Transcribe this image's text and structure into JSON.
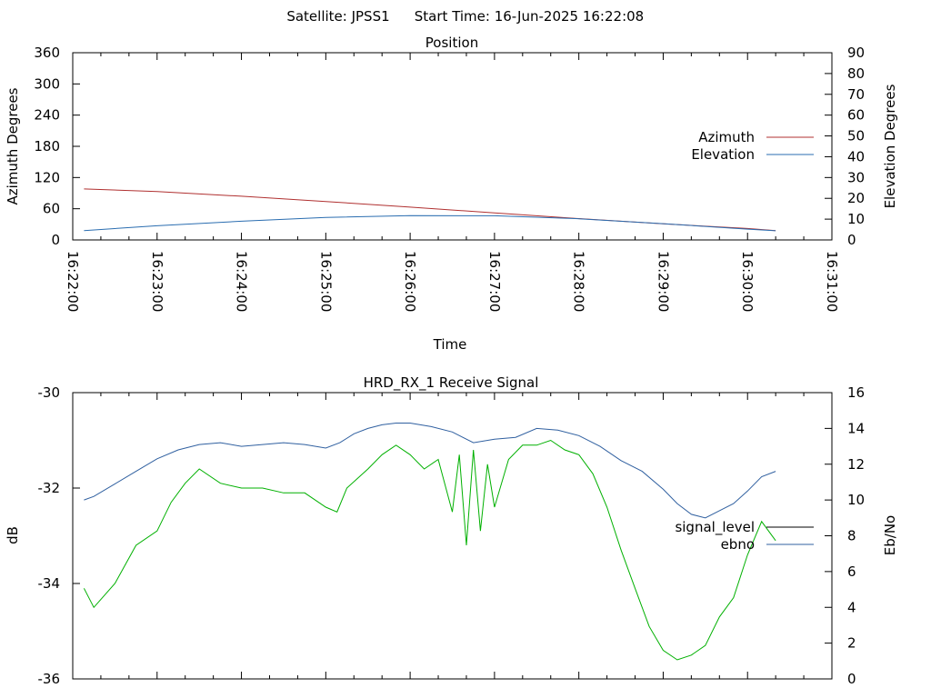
{
  "header": {
    "satellite_label": "Satellite: JPSS1",
    "start_time_label": "Start Time: 16-Jun-2025 16:22:08"
  },
  "colors": {
    "azimuth": "#b03030",
    "elevation": "#2a6db0",
    "signal_level": "#00b000",
    "ebno": "#3060a0",
    "legend_signal_level": "#000000",
    "axis": "#000000"
  },
  "chart_data": [
    {
      "type": "line",
      "title": "Position",
      "xlabel": "Time",
      "ylabel": "Azimuth Degrees",
      "y2label": "Elevation Degrees",
      "xlim": [
        "16:22:00",
        "16:31:00"
      ],
      "ylim": [
        0,
        360
      ],
      "y2lim": [
        0,
        90
      ],
      "x_ticks": [
        "16:22:00",
        "16:23:00",
        "16:24:00",
        "16:25:00",
        "16:26:00",
        "16:27:00",
        "16:28:00",
        "16:29:00",
        "16:30:00",
        "16:31:00"
      ],
      "y_ticks": [
        0,
        60,
        120,
        180,
        240,
        300,
        360
      ],
      "y2_ticks": [
        0,
        10,
        20,
        30,
        40,
        50,
        60,
        70,
        80,
        90
      ],
      "legend_position": "right",
      "series": [
        {
          "name": "Azimuth",
          "axis": "left",
          "x": [
            "16:22:08",
            "16:23:00",
            "16:24:00",
            "16:25:00",
            "16:26:00",
            "16:27:00",
            "16:28:00",
            "16:29:00",
            "16:30:00",
            "16:30:20"
          ],
          "values": [
            98,
            93,
            84,
            74,
            63,
            52,
            41,
            31,
            22,
            18
          ]
        },
        {
          "name": "Elevation",
          "axis": "right",
          "x": [
            "16:22:08",
            "16:23:00",
            "16:24:00",
            "16:25:00",
            "16:26:00",
            "16:27:00",
            "16:28:00",
            "16:29:00",
            "16:30:00",
            "16:30:20"
          ],
          "values": [
            4.5,
            6.8,
            9.0,
            10.8,
            11.7,
            11.6,
            10.2,
            7.8,
            5.2,
            4.4
          ]
        }
      ]
    },
    {
      "type": "line",
      "title": "HRD_RX_1 Receive Signal",
      "xlabel": "",
      "ylabel": "dB",
      "y2label": "Eb/No",
      "xlim": [
        "16:22:00",
        "16:31:00"
      ],
      "ylim": [
        -36,
        -30
      ],
      "y2lim": [
        0,
        16
      ],
      "y_ticks": [
        -36,
        -34,
        -32,
        -30
      ],
      "y2_ticks": [
        0,
        2,
        4,
        6,
        8,
        10,
        12,
        14,
        16
      ],
      "legend_position": "right",
      "series": [
        {
          "name": "signal_level",
          "axis": "left",
          "x": [
            "16:22:08",
            "16:22:15",
            "16:22:30",
            "16:22:45",
            "16:23:00",
            "16:23:10",
            "16:23:20",
            "16:23:30",
            "16:23:45",
            "16:24:00",
            "16:24:15",
            "16:24:30",
            "16:24:45",
            "16:25:00",
            "16:25:08",
            "16:25:15",
            "16:25:30",
            "16:25:40",
            "16:25:50",
            "16:26:00",
            "16:26:10",
            "16:26:20",
            "16:26:30",
            "16:26:35",
            "16:26:40",
            "16:26:45",
            "16:26:50",
            "16:26:55",
            "16:27:00",
            "16:27:10",
            "16:27:20",
            "16:27:30",
            "16:27:40",
            "16:27:50",
            "16:28:00",
            "16:28:10",
            "16:28:20",
            "16:28:30",
            "16:28:40",
            "16:28:50",
            "16:29:00",
            "16:29:10",
            "16:29:20",
            "16:29:30",
            "16:29:40",
            "16:29:50",
            "16:30:00",
            "16:30:10",
            "16:30:20"
          ],
          "values": [
            -34.1,
            -34.5,
            -34.0,
            -33.2,
            -32.9,
            -32.3,
            -31.9,
            -31.6,
            -31.9,
            -32.0,
            -32.0,
            -32.1,
            -32.1,
            -32.4,
            -32.5,
            -32.0,
            -31.6,
            -31.3,
            -31.1,
            -31.3,
            -31.6,
            -31.4,
            -32.5,
            -31.3,
            -33.2,
            -31.2,
            -32.9,
            -31.5,
            -32.4,
            -31.4,
            -31.1,
            -31.1,
            -31.0,
            -31.2,
            -31.3,
            -31.7,
            -32.4,
            -33.3,
            -34.1,
            -34.9,
            -35.4,
            -35.6,
            -35.5,
            -35.3,
            -34.7,
            -34.3,
            -33.4,
            -32.7,
            -33.1
          ]
        },
        {
          "name": "ebno",
          "axis": "right",
          "x": [
            "16:22:08",
            "16:22:15",
            "16:22:30",
            "16:22:45",
            "16:23:00",
            "16:23:15",
            "16:23:30",
            "16:23:45",
            "16:24:00",
            "16:24:15",
            "16:24:30",
            "16:24:45",
            "16:25:00",
            "16:25:10",
            "16:25:20",
            "16:25:30",
            "16:25:40",
            "16:25:50",
            "16:26:00",
            "16:26:15",
            "16:26:30",
            "16:26:45",
            "16:27:00",
            "16:27:15",
            "16:27:30",
            "16:27:45",
            "16:28:00",
            "16:28:15",
            "16:28:30",
            "16:28:45",
            "16:29:00",
            "16:29:10",
            "16:29:20",
            "16:29:30",
            "16:29:40",
            "16:29:50",
            "16:30:00",
            "16:30:10",
            "16:30:20"
          ],
          "values": [
            10.0,
            10.2,
            10.9,
            11.6,
            12.3,
            12.8,
            13.1,
            13.2,
            13.0,
            13.1,
            13.2,
            13.1,
            12.9,
            13.2,
            13.7,
            14.0,
            14.2,
            14.3,
            14.3,
            14.1,
            13.8,
            13.2,
            13.4,
            13.5,
            14.0,
            13.9,
            13.6,
            13.0,
            12.2,
            11.6,
            10.6,
            9.8,
            9.2,
            9.0,
            9.4,
            9.8,
            10.5,
            11.3,
            11.6
          ]
        }
      ]
    }
  ]
}
